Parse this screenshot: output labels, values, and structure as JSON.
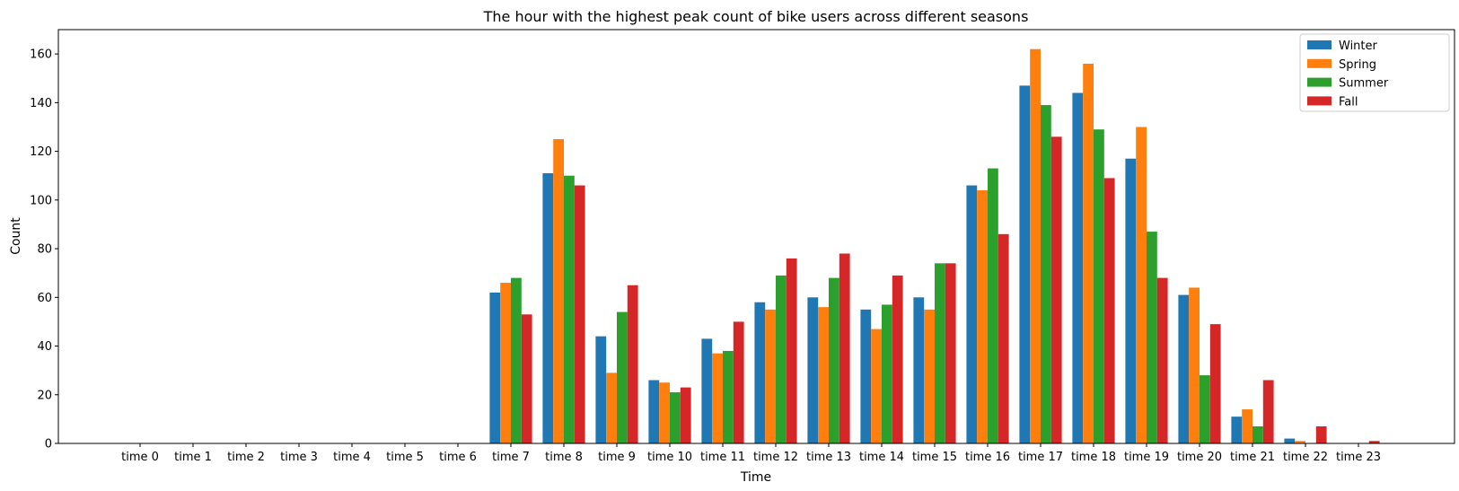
{
  "chart_data": {
    "type": "bar",
    "title": "The hour with the highest peak count of bike users across different seasons",
    "xlabel": "Time",
    "ylabel": "Count",
    "ylim": [
      0,
      170
    ],
    "yticks": [
      0,
      20,
      40,
      60,
      80,
      100,
      120,
      140,
      160
    ],
    "grid": false,
    "legend_position": "top-right",
    "categories": [
      "time 0",
      "time 1",
      "time 2",
      "time 3",
      "time 4",
      "time 5",
      "time 6",
      "time 7",
      "time 8",
      "time 9",
      "time 10",
      "time 11",
      "time 12",
      "time 13",
      "time 14",
      "time 15",
      "time 16",
      "time 17",
      "time 18",
      "time 19",
      "time 20",
      "time 21",
      "time 22",
      "time 23"
    ],
    "series": [
      {
        "name": "Winter",
        "color": "#1f77b4",
        "values": [
          0,
          0,
          0,
          0,
          0,
          0,
          0,
          62,
          111,
          44,
          26,
          43,
          58,
          60,
          55,
          60,
          106,
          147,
          144,
          117,
          61,
          11,
          2,
          0
        ]
      },
      {
        "name": "Spring",
        "color": "#ff7f0e",
        "values": [
          0,
          0,
          0,
          0,
          0,
          0,
          0,
          66,
          125,
          29,
          25,
          37,
          55,
          56,
          47,
          55,
          104,
          162,
          156,
          130,
          64,
          14,
          1,
          0
        ]
      },
      {
        "name": "Summer",
        "color": "#2ca02c",
        "values": [
          0,
          0,
          0,
          0,
          0,
          0,
          0,
          68,
          110,
          54,
          21,
          38,
          69,
          68,
          57,
          74,
          113,
          139,
          129,
          87,
          28,
          7,
          0,
          0
        ]
      },
      {
        "name": "Fall",
        "color": "#d62728",
        "values": [
          0,
          0,
          0,
          0,
          0,
          0,
          0,
          53,
          106,
          65,
          23,
          50,
          76,
          78,
          69,
          74,
          86,
          126,
          109,
          68,
          49,
          26,
          7,
          1
        ]
      }
    ]
  }
}
